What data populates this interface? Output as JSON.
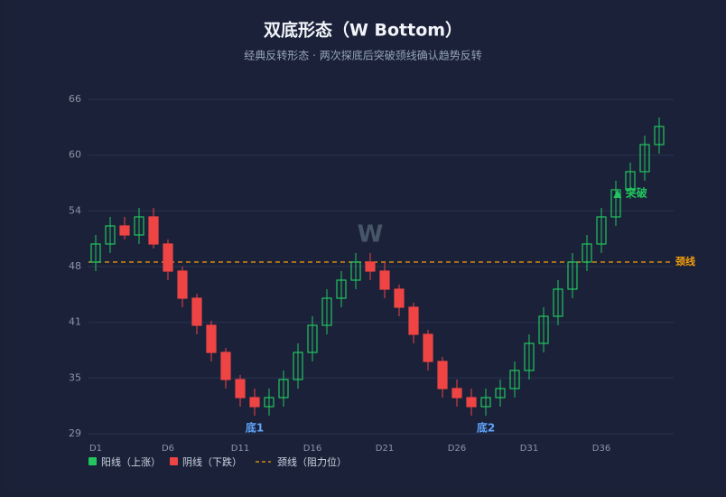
{
  "chart_data": {
    "type": "candlestick",
    "title": "双底形态（W Bottom）",
    "subtitle": "经典反转形态 · 两次探底后突破颈线确认趋势反转",
    "categories": [
      "D1",
      null,
      null,
      null,
      null,
      "D6",
      null,
      null,
      null,
      null,
      "D11",
      null,
      null,
      null,
      null,
      "D16",
      null,
      null,
      null,
      null,
      "D21",
      null,
      null,
      null,
      null,
      "D26",
      null,
      null,
      null,
      null,
      "D31",
      null,
      null,
      null,
      null,
      "D36",
      null,
      null,
      null,
      null
    ],
    "open": [
      48,
      50,
      52,
      51,
      53,
      50,
      47,
      44,
      41,
      38,
      35,
      33,
      32,
      33,
      35,
      38,
      41,
      44,
      46,
      48,
      47,
      45,
      43,
      40,
      37,
      34,
      33,
      32,
      33,
      34,
      36,
      39,
      42,
      45,
      48,
      50,
      53,
      56,
      58,
      61
    ],
    "high": [
      51,
      53,
      53,
      54,
      54,
      50.5,
      47.5,
      44.5,
      41.5,
      38.5,
      35.5,
      34,
      34,
      36,
      39,
      42,
      45,
      47,
      49,
      49,
      48,
      45.5,
      43.5,
      40.5,
      37.5,
      35,
      34,
      34,
      35,
      37,
      40,
      43,
      46,
      49,
      51,
      54,
      57,
      59,
      62,
      64
    ],
    "low": [
      47,
      49,
      50.5,
      50,
      49.5,
      46,
      43,
      40,
      37,
      34,
      32,
      31,
      31,
      32,
      34,
      37,
      40,
      43,
      45,
      46,
      44,
      42,
      39,
      36,
      33,
      32,
      31,
      31,
      32,
      33,
      35,
      38,
      41,
      44,
      47,
      49,
      52,
      55,
      57,
      60
    ],
    "close": [
      50,
      52,
      51,
      53,
      50,
      47,
      44,
      41,
      38,
      35,
      33,
      32,
      33,
      35,
      38,
      41,
      44,
      46,
      48,
      47,
      45,
      43,
      40,
      37,
      34,
      33,
      32,
      33,
      34,
      36,
      39,
      42,
      45,
      48,
      50,
      53,
      56,
      58,
      61,
      63
    ],
    "series": [
      {
        "name": "阳线（上涨）",
        "color": "#22c55e"
      },
      {
        "name": "阴线（下跌）",
        "color": "#ef4444"
      }
    ],
    "neckline": {
      "value": 48,
      "label": "颈线",
      "name": "颈线（阻力位）",
      "color": "#f59e0b"
    },
    "annotations": [
      {
        "text": "W",
        "x": 19,
        "y": 51,
        "color": "#475569"
      },
      {
        "text": "底1",
        "x": 11,
        "y": 29.6,
        "color": "#60a5fa"
      },
      {
        "text": "底2",
        "x": 27,
        "y": 29.6,
        "color": "#60a5fa"
      },
      {
        "text": "▲ 突破",
        "x": 37,
        "y": 55.6,
        "color": "#22c55e"
      }
    ],
    "ylim": [
      29,
      66
    ],
    "yticks": [
      29,
      {
        "value": 35.17,
        "label": "35"
      },
      {
        "value": 41.33,
        "label": "41"
      },
      {
        "value": 47.5,
        "label": "48"
      },
      {
        "value": 53.67,
        "label": "54"
      },
      {
        "value": 59.83,
        "label": "60"
      },
      66
    ],
    "grid": true
  }
}
